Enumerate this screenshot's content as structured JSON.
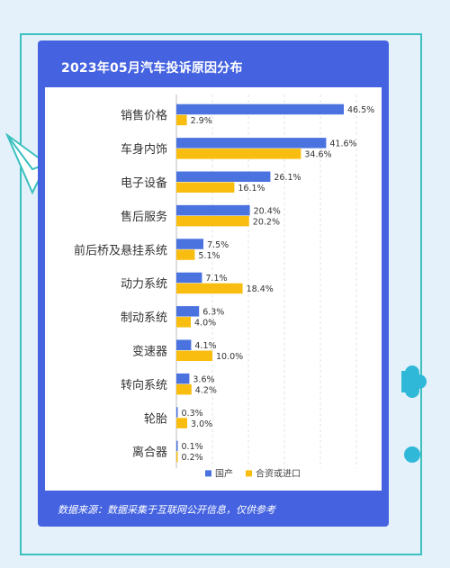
{
  "title": "2023年05月汽车投诉原因分布",
  "source": "数据来源：数据采集于互联网公开信息，仅供参考",
  "colors": {
    "background": "#e4f1fb",
    "card": "#4563e0",
    "domestic": "#4a73e0",
    "import": "#f9bd10",
    "frame": "#3cc0c0"
  },
  "chart_data": {
    "type": "bar",
    "orientation": "horizontal",
    "title": "2023年05月汽车投诉原因分布",
    "categories": [
      "销售价格",
      "车身内饰",
      "电子设备",
      "售后服务",
      "前后桥及悬挂系统",
      "动力系统",
      "制动系统",
      "变速器",
      "转向系统",
      "轮胎",
      "离合器"
    ],
    "series": [
      {
        "name": "国产",
        "color": "#4a73e0",
        "values": [
          46.5,
          41.6,
          26.1,
          20.4,
          7.5,
          7.1,
          6.3,
          4.1,
          3.6,
          0.3,
          0.1
        ],
        "labels": [
          "46.5%",
          "41.6%",
          "26.1%",
          "20.4%",
          "7.5%",
          "7.1%",
          "6.3%",
          "4.1%",
          "3.6%",
          "0.3%",
          "0.1%"
        ]
      },
      {
        "name": "合资或进口",
        "color": "#f9bd10",
        "values": [
          2.9,
          34.6,
          16.1,
          20.2,
          5.1,
          18.4,
          4.0,
          10.0,
          4.2,
          3.0,
          0.2
        ],
        "labels": [
          "2.9%",
          "34.6%",
          "16.1%",
          "20.2%",
          "5.1%",
          "18.4%",
          "4.0%",
          "10.0%",
          "4.2%",
          "3.0%",
          "0.2%"
        ]
      }
    ],
    "xlim": [
      0,
      50
    ],
    "grid": true,
    "legend": "bottom"
  }
}
